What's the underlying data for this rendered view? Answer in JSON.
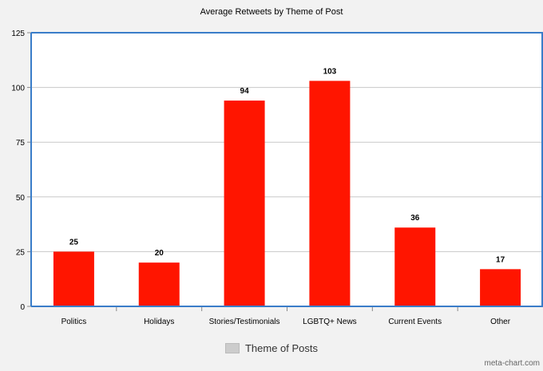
{
  "chart_data": {
    "type": "bar",
    "title": "Average Retweets by Theme of Post",
    "categories": [
      "Politics",
      "Holidays",
      "Stories/Testimonials",
      "LGBTQ+ News",
      "Current Events",
      "Other"
    ],
    "series": [
      {
        "name": "Theme of Posts",
        "values": [
          25,
          20,
          94,
          103,
          36,
          17
        ]
      }
    ],
    "value_labels": [
      "25",
      "20",
      "94",
      "103",
      "36",
      "17"
    ],
    "ylim": [
      0,
      125
    ],
    "yticks": [
      0,
      25,
      50,
      75,
      100,
      125
    ],
    "ytick_labels": [
      "0",
      "25",
      "50",
      "75",
      "100",
      "125"
    ],
    "grid": true,
    "legend_position": "bottom",
    "bar_color": "#ff1500",
    "plot_border_color": "#3a7dc9",
    "grid_color": "#c8c8c8"
  },
  "legend": {
    "label": "Theme of Posts",
    "swatch_color": "#cccccc"
  },
  "credit": "meta-chart.com"
}
